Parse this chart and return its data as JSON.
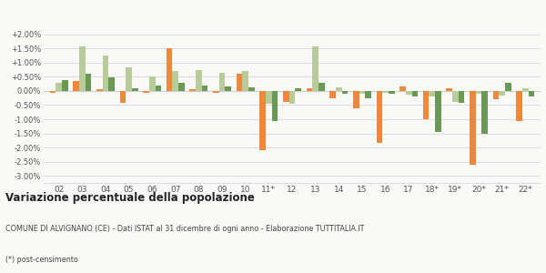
{
  "categories": [
    "02",
    "03",
    "04",
    "05",
    "06",
    "07",
    "08",
    "09",
    "10",
    "11*",
    "12",
    "13",
    "14",
    "15",
    "16",
    "17",
    "18*",
    "19*",
    "20*",
    "21*",
    "22*"
  ],
  "alvignano": [
    -0.08,
    0.35,
    0.05,
    -0.42,
    -0.05,
    1.5,
    0.05,
    -0.05,
    0.6,
    -2.1,
    -0.4,
    0.1,
    -0.25,
    -0.62,
    -1.82,
    0.15,
    -1.0,
    0.1,
    -2.6,
    -0.3,
    -1.05
  ],
  "provincia_ce": [
    0.3,
    1.58,
    1.25,
    0.85,
    0.5,
    0.72,
    0.75,
    0.65,
    0.7,
    -0.45,
    -0.45,
    1.58,
    0.12,
    -0.1,
    -0.08,
    -0.12,
    -0.2,
    -0.4,
    -0.1,
    -0.15,
    0.1
  ],
  "campania": [
    0.37,
    0.6,
    0.48,
    0.1,
    0.2,
    0.3,
    0.2,
    0.17,
    0.12,
    -1.07,
    0.1,
    0.3,
    -0.1,
    -0.25,
    -0.1,
    -0.2,
    -1.45,
    -0.42,
    -1.5,
    0.3,
    -0.2
  ],
  "color_alvignano": "#f0883c",
  "color_provincia": "#b8cc9a",
  "color_campania": "#6a9955",
  "title1": "Variazione percentuale della popolazione",
  "subtitle": "COMUNE DI ALVIGNANO (CE) - Dati ISTAT al 31 dicembre di ogni anno - Elaborazione TUTTITALIA.IT",
  "footnote": "(*) post-censimento",
  "ylim_min": -3.25,
  "ylim_max": 2.25,
  "yticks": [
    -3.0,
    -2.5,
    -2.0,
    -1.5,
    -1.0,
    -0.5,
    0.0,
    0.5,
    1.0,
    1.5,
    2.0
  ],
  "bg_color": "#f9f9f7",
  "grid_color": "#dddddd"
}
